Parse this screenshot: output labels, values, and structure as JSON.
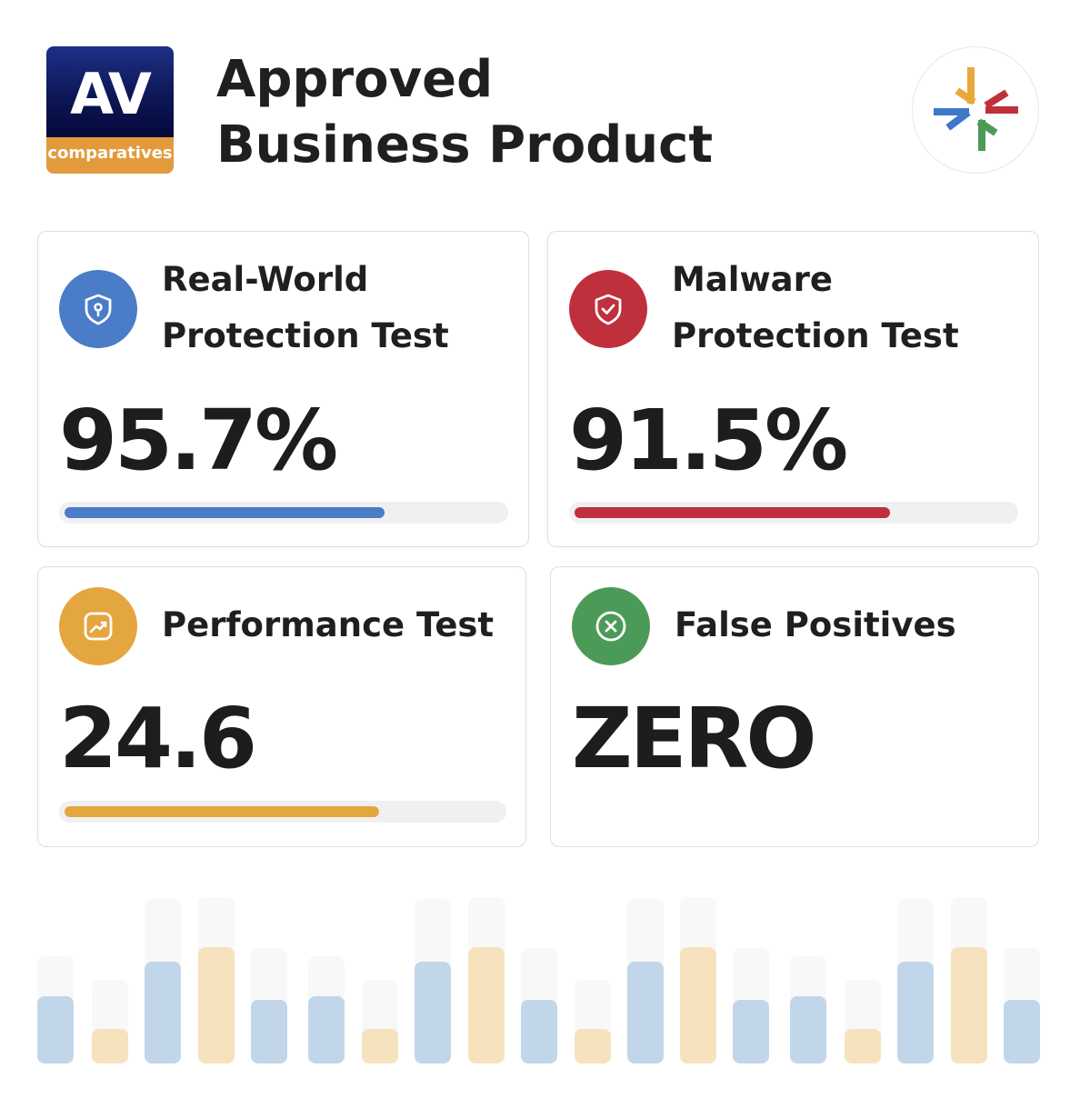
{
  "header": {
    "logo": {
      "top_text": "AV",
      "bottom_text": "comparatives",
      "colors": {
        "top": "#0d1756",
        "bottom": "#e29a3d"
      }
    },
    "title": "Approved\nBusiness Product",
    "brand_mark_icon": "arrows-convergence-icon"
  },
  "cards": [
    {
      "title": "Real-World\nProtection Test",
      "value": "95.7%",
      "icon": "shield-keyhole-icon",
      "color": "#4a7cc7",
      "progress": 0.73
    },
    {
      "title": "Malware\nProtection Test",
      "value": "91.5%",
      "icon": "shield-check-icon",
      "color": "#c0303c",
      "progress": 0.72
    },
    {
      "title": "Performance Test",
      "value": "24.6",
      "icon": "trend-chart-icon",
      "color": "#e4a63f",
      "progress": 0.72
    },
    {
      "title": "False Positives",
      "value": "ZERO",
      "icon": "x-circle-icon",
      "color": "#4c9a57"
    }
  ],
  "decoration": {
    "colors": {
      "blue": "#c2d6ea",
      "gold": "#f6e3bd",
      "ghost": "#f8f8f8"
    }
  }
}
